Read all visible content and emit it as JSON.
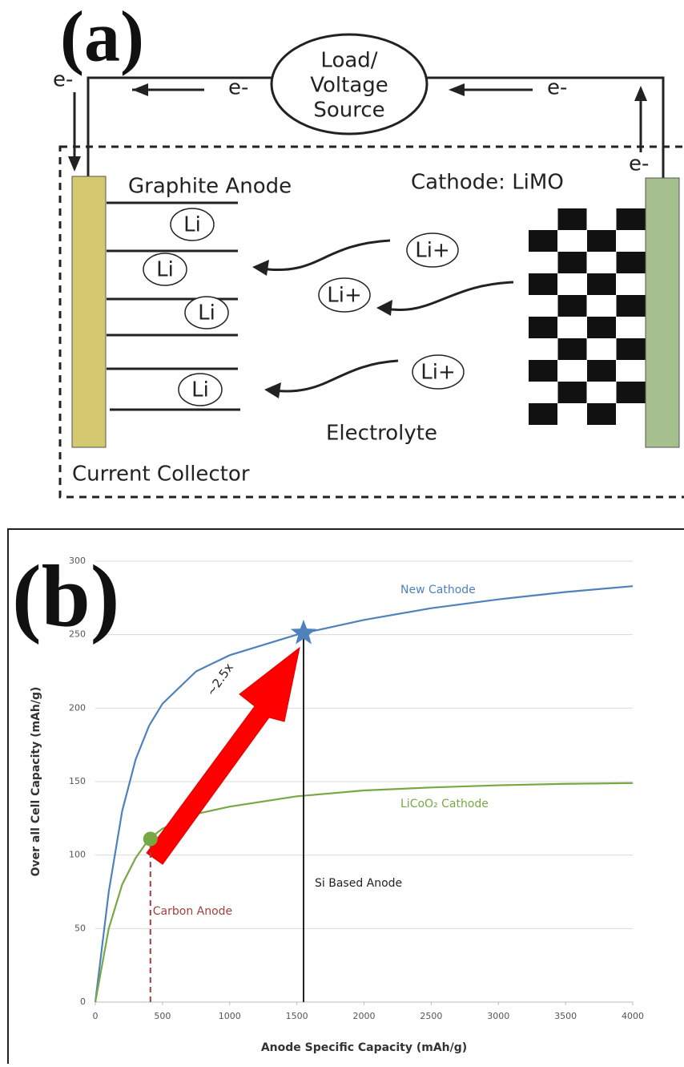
{
  "diagram": {
    "label": "(a)",
    "load": [
      "Load/",
      "Voltage",
      "Source"
    ],
    "electrons": [
      "e-",
      "e-",
      "e-",
      "e-"
    ],
    "anode": "Graphite Anode",
    "cathode": "Cathode: LiMO",
    "anode_ions": [
      "Li",
      "Li",
      "Li",
      "Li"
    ],
    "electrolyte_ions": [
      "Li+",
      "Li+",
      "Li+"
    ],
    "electrolyte": "Electrolyte",
    "collector": "Current Collector"
  },
  "chart_data": {
    "type": "line",
    "label": "(b)",
    "x_label": "Anode Specific Capacity (mAh/g)",
    "y_label": "Over all Cell Capacity (mAh/g)",
    "x": [
      0,
      100,
      200,
      300,
      400,
      500,
      750,
      1000,
      1500,
      2000,
      2500,
      3000,
      3500,
      4000
    ],
    "series": [
      {
        "name": "New Cathode",
        "color": "#4f81bd",
        "values": [
          0,
          75,
          130,
          165,
          188,
          203,
          225,
          236,
          250,
          260,
          268,
          274,
          279,
          283
        ]
      },
      {
        "name": "LiCoO₂ Cathode",
        "color": "#77a843",
        "values": [
          0,
          50,
          80,
          98,
          111,
          118,
          128,
          133,
          140,
          144,
          146,
          147.5,
          148.5,
          149
        ]
      }
    ],
    "markers": [
      {
        "x": 410,
        "y": 111,
        "label": "Carbon Anode",
        "color": "#a04040"
      },
      {
        "x": 1550,
        "y": 251,
        "label": "Si Based Anode",
        "color": "#222222"
      }
    ],
    "arrow_label": "~2.5x",
    "xlim": [
      0,
      4000
    ],
    "xticks": [
      0,
      500,
      1000,
      1500,
      2000,
      2500,
      3000,
      3500,
      4000
    ],
    "ylim": [
      0,
      300
    ],
    "yticks": [
      0,
      50,
      100,
      150,
      200,
      250,
      300
    ],
    "grid": true
  }
}
